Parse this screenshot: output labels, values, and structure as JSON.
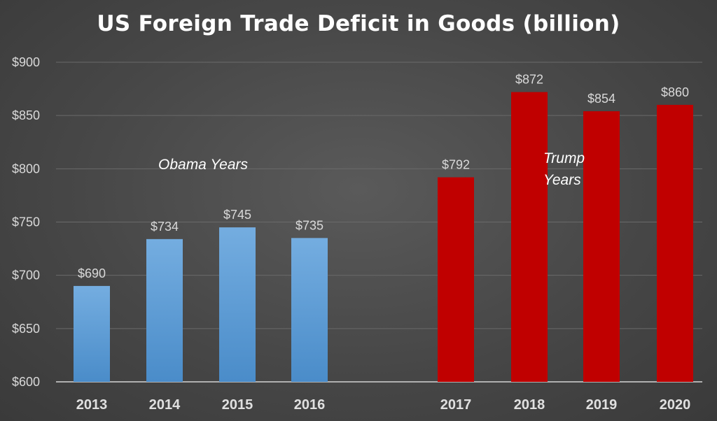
{
  "chart_data": {
    "type": "bar",
    "title": "US Foreign Trade Deficit in Goods (billion)",
    "xlabel": "",
    "ylabel": "",
    "categories": [
      "2013",
      "2014",
      "2015",
      "2016",
      "2017",
      "2018",
      "2019",
      "2020"
    ],
    "values": [
      690,
      734,
      745,
      735,
      792,
      872,
      854,
      860
    ],
    "data_labels": [
      "$690",
      "$734",
      "$745",
      "$735",
      "$792",
      "$872",
      "$854",
      "$860"
    ],
    "ylim": [
      600,
      900
    ],
    "y_ticks": [
      600,
      650,
      700,
      750,
      800,
      850,
      900
    ],
    "y_tick_labels": [
      "$600",
      "$650",
      "$700",
      "$750",
      "$800",
      "$850",
      "$900"
    ],
    "grid": true,
    "legend": "none",
    "bar_colors": [
      "#5b9bd5",
      "#5b9bd5",
      "#5b9bd5",
      "#5b9bd5",
      "#c00000",
      "#c00000",
      "#c00000",
      "#c00000"
    ],
    "annotations": [
      {
        "lines": [
          "Obama Years"
        ],
        "category": "2014"
      },
      {
        "lines": [
          "Trump",
          "Years"
        ],
        "category": "2018"
      }
    ]
  },
  "colors": {
    "background": "#474747",
    "obama_bar": "#5b9bd5",
    "trump_bar": "#c00000",
    "text": "#ffffff"
  }
}
